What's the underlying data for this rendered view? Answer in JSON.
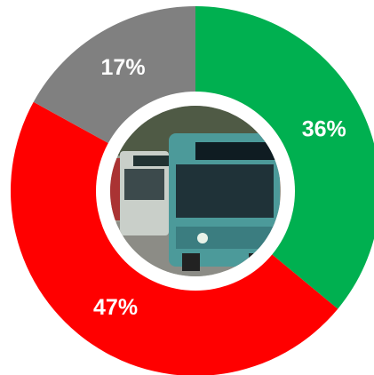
{
  "chart_data": {
    "type": "donut",
    "values": [
      36,
      47,
      17
    ],
    "value_labels": [
      "36%",
      "47%",
      "17%"
    ],
    "colors": [
      "#00b050",
      "#ff0000",
      "#808080"
    ]
  }
}
